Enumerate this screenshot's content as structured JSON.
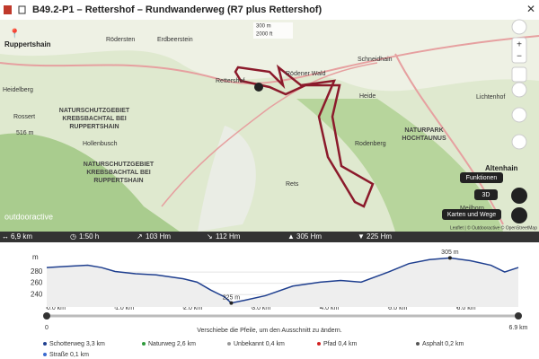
{
  "header": {
    "title": "B49.2-P1 – Rettershof – Rundwanderweg (R7 plus Rettershof)"
  },
  "map": {
    "places": [
      "Ruppertshain",
      "Rödersten",
      "Erdbeerstein",
      "Schneidhain",
      "Rettershof",
      "Rödener Wald",
      "Heide",
      "Hollenbusch",
      "Rodenberg",
      "Altenhain",
      "Meilborn",
      "Lichtenhof",
      "Heidelberg",
      "Rossert",
      "516 m",
      "Rets"
    ],
    "nsg": [
      "NATURSCHUTZGEBIET",
      "KREBSBACHTAL BEI",
      "RUPPERTSHAIN"
    ],
    "naturpark": [
      "NATURPARK",
      "HOCHTAUNUS"
    ],
    "scale": [
      "300 m",
      "2000 ft"
    ],
    "logo": "outdooractive",
    "attribution": "Leaflet | © Outdooractive © OpenStreetMap",
    "buttons": [
      "Funktionen",
      "3D",
      "Karten und Wege"
    ]
  },
  "stats": [
    "6,9 km",
    "1:50 h",
    "103 Hm",
    "112 Hm",
    "305 Hm",
    "225 Hm"
  ],
  "profile": {
    "y_label": "m",
    "yticks": [
      240,
      260,
      280
    ],
    "ylim": [
      218,
      312
    ],
    "xlim": [
      0,
      6.9
    ],
    "xticks": [
      {
        "value": 0,
        "label": "0.0 km"
      },
      {
        "value": 1,
        "label": "1.0 km"
      },
      {
        "value": 2,
        "label": "2.0 km"
      },
      {
        "value": 3,
        "label": "3.0 km"
      },
      {
        "value": 4,
        "label": "4.0 km"
      },
      {
        "value": 5,
        "label": "5.0 km"
      },
      {
        "value": 6,
        "label": "6.0 km"
      }
    ],
    "x": [
      0,
      0.3,
      0.6,
      0.8,
      1.0,
      1.3,
      1.6,
      2.0,
      2.2,
      2.4,
      2.6,
      2.7,
      2.9,
      3.2,
      3.6,
      4.0,
      4.3,
      4.6,
      5.0,
      5.3,
      5.6,
      5.9,
      6.2,
      6.5,
      6.7,
      6.9
    ],
    "values": [
      288,
      290,
      292,
      288,
      281,
      277,
      275,
      268,
      262,
      248,
      236,
      225,
      230,
      238,
      255,
      262,
      265,
      262,
      280,
      295,
      302,
      305,
      300,
      292,
      280,
      288
    ],
    "max": {
      "x": 5.9,
      "value": 305,
      "label": "305 m"
    },
    "min": {
      "x": 2.7,
      "value": 225,
      "label": "225 m"
    },
    "slider": {
      "start": "0",
      "end": "6.9 km"
    },
    "hint": "Verschiebe die Pfeile, um den Ausschnitt zu ändern.",
    "legend": [
      {
        "name": "Schotterweg 3,3 km",
        "color": "#1f3f8f"
      },
      {
        "name": "Naturweg 2,6 km",
        "color": "#2e9a3a"
      },
      {
        "name": "Unbekannt 0,4 km",
        "color": "#999999"
      },
      {
        "name": "Pfad 0,4 km",
        "color": "#d22222"
      },
      {
        "name": "Asphalt 0,2 km",
        "color": "#555555"
      },
      {
        "name": "Straße 0,1 km",
        "color": "#3a6ad0"
      }
    ]
  }
}
